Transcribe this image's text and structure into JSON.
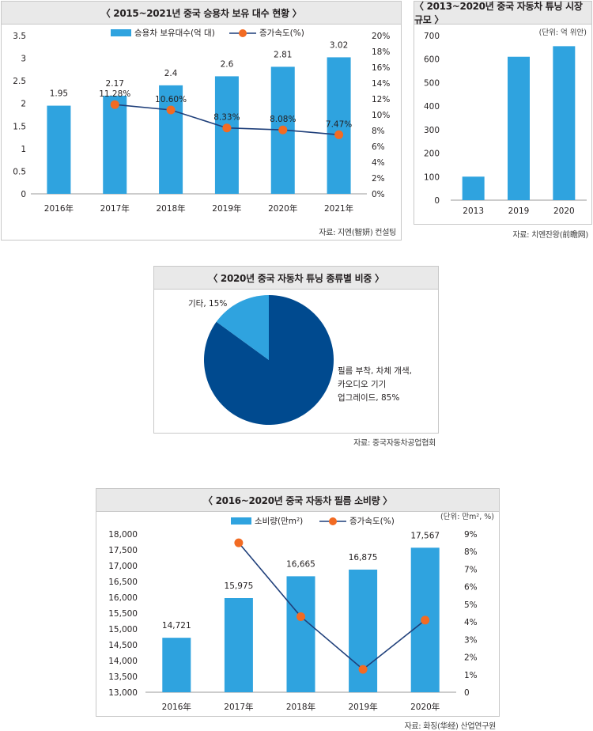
{
  "colors": {
    "bar": "#2fa3df",
    "line": "#1f3f7a",
    "marker": "#f26b23",
    "pie_main": "#004a8f",
    "pie_other": "#2fa3df"
  },
  "chart1": {
    "title": "〈 2015~2021년 중국 승용차 보유 대수 현황 〉",
    "source": "자료: 지엔(智妍) 컨설팅"
  },
  "chart2": {
    "title": "〈 2013~2020년 중국 자동차 튜닝 시장 규모 〉",
    "source": "자료: 치엔잔왕(前瞻网)"
  },
  "chart3": {
    "title": "〈 2020년 중국 자동차 튜닝 종류별 비중 〉",
    "source": "자료: 중국자동차공업협회"
  },
  "chart4": {
    "title": "〈 2016~2020년 중국 자동차 필름 소비량 〉",
    "source": "자료: 화징(华经) 산업연구원"
  },
  "chart_data": [
    {
      "type": "bar",
      "title": "〈 2015~2021년 중국 승용차 보유 대수 현황 〉",
      "categories": [
        "2016年",
        "2017年",
        "2018年",
        "2019年",
        "2020年",
        "2021年"
      ],
      "y_ticks": [
        "0",
        "0.5",
        "1",
        "1.5",
        "2",
        "2.5",
        "3",
        "3.5"
      ],
      "y2_ticks": [
        "0%",
        "2%",
        "4%",
        "6%",
        "8%",
        "10%",
        "12%",
        "14%",
        "16%",
        "18%",
        "20%"
      ],
      "ylim": [
        0,
        3.5
      ],
      "y2lim": [
        0,
        20
      ],
      "legend": "top-center",
      "series": [
        {
          "name": "승용차 보유대수(억 대)",
          "type": "bar",
          "axis": "left",
          "values": [
            1.95,
            2.17,
            2.4,
            2.6,
            2.81,
            3.02
          ],
          "labels": [
            "1.95",
            "2.17",
            "2.4",
            "2.6",
            "2.81",
            "3.02"
          ]
        },
        {
          "name": "증가속도(%)",
          "type": "line",
          "axis": "right",
          "values": [
            null,
            11.28,
            10.6,
            8.33,
            8.08,
            7.47
          ],
          "labels": [
            "",
            "11.28%",
            "10.60%",
            "8.33%",
            "8.08%",
            "7.47%"
          ]
        }
      ]
    },
    {
      "type": "bar",
      "title": "〈 2013~2020년 중국 자동차 튜닝 시장 규모 〉",
      "unit": "(단위: 억 위안)",
      "categories": [
        "2013",
        "2019",
        "2020"
      ],
      "y_ticks": [
        "0",
        "100",
        "200",
        "300",
        "400",
        "500",
        "600",
        "700"
      ],
      "ylim": [
        0,
        700
      ],
      "series": [
        {
          "name": "",
          "values": [
            100,
            610,
            655
          ]
        }
      ]
    },
    {
      "type": "pie",
      "title": "〈 2020년 중국 자동차 튜닝 종류별 비중 〉",
      "slices": [
        {
          "label_lines": [
            "필름 부착, 차체 개색,",
            "카오디오 기기",
            "업그레이드, 85%"
          ],
          "value": 85
        },
        {
          "label_lines": [
            "기타, 15%"
          ],
          "value": 15
        }
      ]
    },
    {
      "type": "bar",
      "title": "〈 2016~2020년 중국 자동차 필름 소비량 〉",
      "unit": "(단위: 만m², %)",
      "categories": [
        "2016年",
        "2017年",
        "2018年",
        "2019年",
        "2020年"
      ],
      "y_ticks": [
        "13,000",
        "13,500",
        "14,000",
        "14,500",
        "15,000",
        "15,500",
        "16,000",
        "16,500",
        "17,000",
        "17,500",
        "18,000"
      ],
      "y2_ticks": [
        "0",
        "1%",
        "2%",
        "3%",
        "4%",
        "5%",
        "6%",
        "7%",
        "8%",
        "9%"
      ],
      "ylim": [
        13000,
        18000
      ],
      "y2lim": [
        0,
        9
      ],
      "legend": "top-center",
      "series": [
        {
          "name": "소비량(만m²)",
          "type": "bar",
          "axis": "left",
          "values": [
            14721,
            15975,
            16665,
            16875,
            17567
          ],
          "labels": [
            "14,721",
            "15,975",
            "16,665",
            "16,875",
            "17,567"
          ]
        },
        {
          "name": "증가속도(%)",
          "type": "line",
          "axis": "right",
          "values": [
            null,
            8.5,
            4.3,
            1.3,
            4.1
          ]
        }
      ]
    }
  ]
}
